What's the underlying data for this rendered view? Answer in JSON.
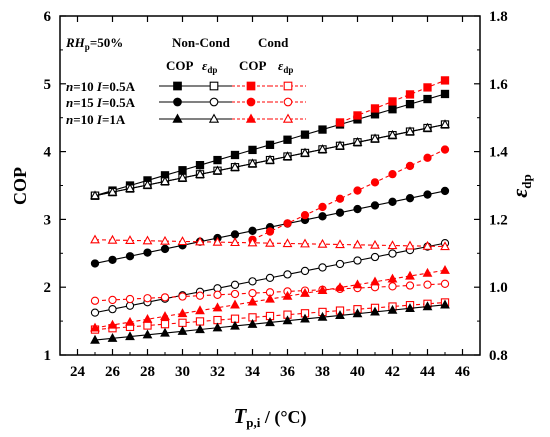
{
  "chart_data": {
    "type": "line",
    "x": [
      25,
      26,
      27,
      28,
      29,
      30,
      31,
      32,
      33,
      34,
      35,
      36,
      37,
      38,
      39,
      40,
      41,
      42,
      43,
      44,
      45
    ],
    "xlim": [
      23,
      47
    ],
    "xticks": [
      24,
      26,
      28,
      30,
      32,
      34,
      36,
      38,
      40,
      42,
      44,
      46
    ],
    "xlabel": {
      "main": "T",
      "sub": "p,i",
      "rest": " / (°C)"
    },
    "left_axis": {
      "label": "COP",
      "ylim": [
        1,
        6
      ],
      "ticks": [
        1,
        2,
        3,
        4,
        5,
        6
      ]
    },
    "right_axis": {
      "label": {
        "main": "ε",
        "sub": "dp"
      },
      "ylim": [
        0.8,
        1.8
      ],
      "ticks": [
        "0.8",
        "1.0",
        "1.2",
        "1.4",
        "1.6",
        "1.8"
      ]
    },
    "colors": {
      "non_cond": "#000000",
      "cond": "#ff0000"
    },
    "legend": {
      "title": {
        "main": "RH",
        "sub": "p",
        "rest": "=50%"
      },
      "group_noncond": "Non-Cond",
      "group_cond": "Cond",
      "col_cop": "COP",
      "col_eps": {
        "main": "ε",
        "sub": "dp"
      },
      "rows": [
        {
          "n": "n",
          "n_val": "=10 ",
          "i": "I",
          "i_val": "=0.5A",
          "marker": "square"
        },
        {
          "n": "n",
          "n_val": "=15 ",
          "i": "I",
          "i_val": "=0.5A",
          "marker": "circle"
        },
        {
          "n": "n",
          "n_val": "=10 ",
          "i": "I",
          "i_val": "=1A",
          "marker": "triangle"
        }
      ]
    },
    "series": [
      {
        "case": 0,
        "condition": "non-cond",
        "quantity": "COP",
        "axis": "left",
        "start": 3.35,
        "end": 4.85
      },
      {
        "case": 0,
        "condition": "non-cond",
        "quantity": "eps",
        "axis": "right",
        "start": 1.27,
        "end": 1.48
      },
      {
        "case": 0,
        "condition": "cond",
        "quantity": "COP",
        "axis": "left",
        "start": 4.43,
        "end": 5.05,
        "x_start": 39
      },
      {
        "case": 0,
        "condition": "cond",
        "quantity": "eps",
        "axis": "right",
        "start": 0.875,
        "end": 0.955
      },
      {
        "case": 1,
        "condition": "non-cond",
        "quantity": "COP",
        "axis": "left",
        "start": 2.35,
        "end": 3.42
      },
      {
        "case": 1,
        "condition": "non-cond",
        "quantity": "eps",
        "axis": "right",
        "start": 0.925,
        "end": 1.13
      },
      {
        "case": 1,
        "condition": "cond",
        "quantity": "COP",
        "axis": "left",
        "start": 2.7,
        "end": 4.03,
        "x_start": 34
      },
      {
        "case": 1,
        "condition": "cond",
        "quantity": "eps",
        "axis": "right",
        "start": 0.96,
        "end": 1.01
      },
      {
        "case": 2,
        "condition": "non-cond",
        "quantity": "COP",
        "axis": "left",
        "start": 1.22,
        "end": 1.74
      },
      {
        "case": 2,
        "condition": "non-cond",
        "quantity": "eps",
        "axis": "right",
        "start": 1.27,
        "end": 1.48
      },
      {
        "case": 2,
        "condition": "cond",
        "quantity": "COP",
        "axis": "left",
        "start": 1.4,
        "end": 2.25
      },
      {
        "case": 2,
        "condition": "cond",
        "quantity": "eps",
        "axis": "right",
        "start": 1.14,
        "end": 1.12
      }
    ]
  }
}
